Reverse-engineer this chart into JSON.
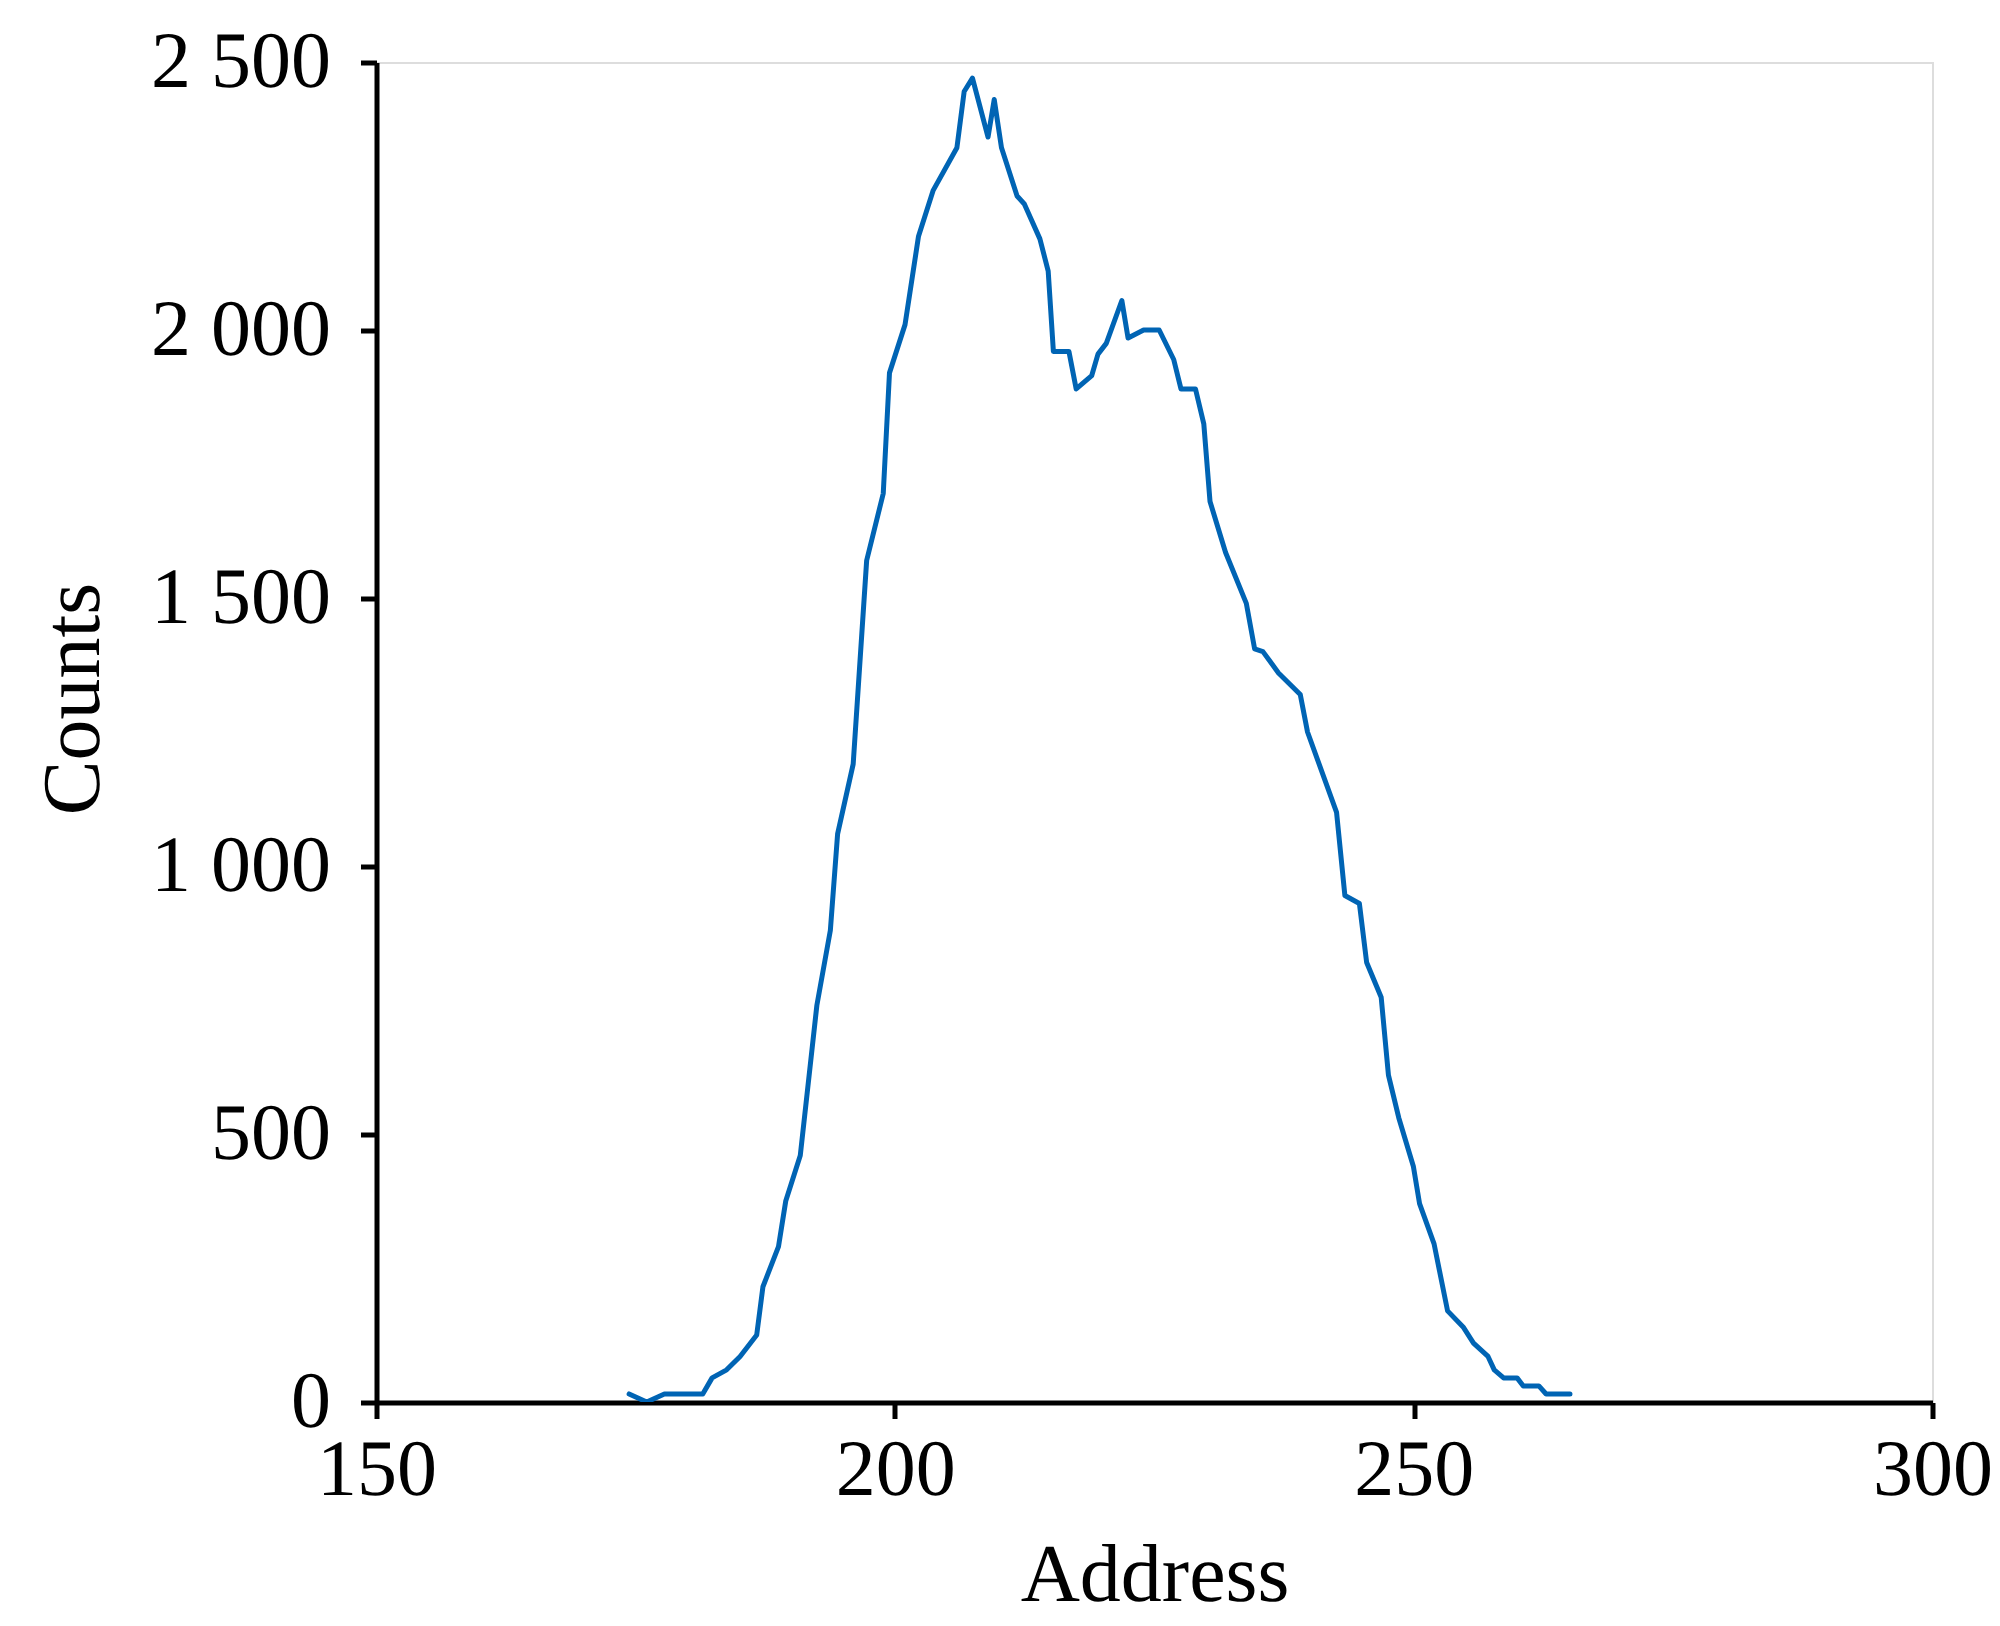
{
  "chart_data": {
    "type": "line",
    "xlabel": "Address",
    "ylabel": "Counts",
    "color": "#0064b4",
    "x": [
      174.4,
      176.1,
      177.8,
      181.5,
      182.4,
      183.8,
      185.1,
      186.7,
      187.3,
      188.8,
      189.5,
      190.9,
      192.5,
      193.8,
      194.5,
      196.0,
      197.3,
      198.9,
      199.5,
      201.0,
      202.3,
      203.7,
      206.0,
      206.7,
      207.5,
      209.0,
      209.6,
      210.3,
      211.8,
      212.5,
      214.0,
      214.8,
      215.3,
      216.8,
      217.5,
      219.0,
      219.6,
      220.4,
      221.9,
      222.5,
      224.0,
      225.5,
      226.9,
      227.6,
      229.0,
      229.8,
      230.4,
      231.9,
      233.9,
      234.7,
      235.5,
      237.0,
      239.1,
      239.8,
      242.6,
      243.4,
      244.8,
      245.5,
      246.9,
      247.6,
      248.6,
      250.0,
      250.6,
      252.0,
      253.3,
      254.8,
      255.8,
      257.2,
      257.8,
      258.7,
      260.0,
      260.6,
      262.1,
      262.8,
      265.1
    ],
    "values": [
      15,
      0,
      15,
      15,
      45,
      60,
      85,
      125,
      215,
      290,
      375,
      460,
      740,
      880,
      1060,
      1190,
      1570,
      1695,
      1920,
      2010,
      2175,
      2260,
      2340,
      2445,
      2470,
      2360,
      2430,
      2340,
      2250,
      2235,
      2170,
      2110,
      1960,
      1960,
      1890,
      1915,
      1955,
      1975,
      2055,
      1985,
      2000,
      2000,
      1945,
      1890,
      1890,
      1825,
      1680,
      1585,
      1490,
      1405,
      1400,
      1360,
      1320,
      1250,
      1100,
      945,
      930,
      820,
      755,
      610,
      530,
      440,
      370,
      295,
      170,
      140,
      110,
      85,
      60,
      45,
      45,
      30,
      30,
      15,
      15
    ],
    "xlim": [
      150,
      300
    ],
    "xticks": [
      150,
      200,
      250,
      300
    ],
    "ylim": [
      0,
      2500
    ],
    "yticks": [
      0,
      500,
      {
        "value": 1000,
        "label": "1 000"
      },
      {
        "value": 1500,
        "label": "1 500"
      },
      {
        "value": 2000,
        "label": "2 000"
      },
      {
        "value": 2500,
        "label": "2 500"
      }
    ]
  }
}
